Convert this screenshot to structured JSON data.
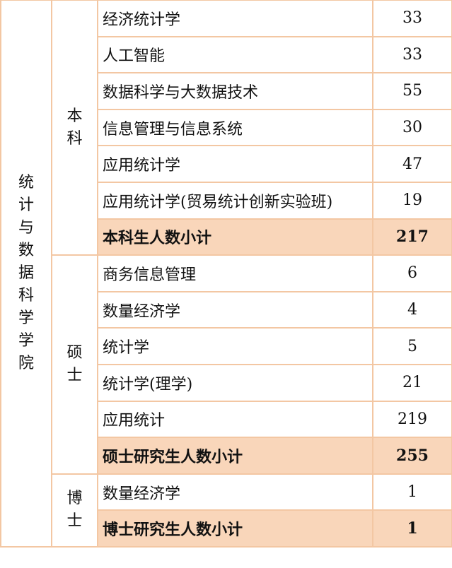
{
  "college": "统计与数据科学学院",
  "groups": [
    {
      "level": "本科",
      "rows": [
        {
          "major": "经济统计学",
          "count": "33"
        },
        {
          "major": "人工智能",
          "count": "33"
        },
        {
          "major": "数据科学与大数据技术",
          "count": "55"
        },
        {
          "major": "信息管理与信息系统",
          "count": "30"
        },
        {
          "major": "应用统计学",
          "count": "47"
        },
        {
          "major": "应用统计学(贸易统计创新实验班)",
          "count": "19"
        }
      ],
      "subtotal": {
        "label": "本科生人数小计",
        "count": "217"
      }
    },
    {
      "level": "硕士",
      "rows": [
        {
          "major": "商务信息管理",
          "count": "6"
        },
        {
          "major": "数量经济学",
          "count": "4"
        },
        {
          "major": "统计学",
          "count": "5"
        },
        {
          "major": "统计学(理学)",
          "count": "21"
        },
        {
          "major": "应用统计",
          "count": "219"
        }
      ],
      "subtotal": {
        "label": "硕士研究生人数小计",
        "count": "255"
      }
    },
    {
      "level": "博士",
      "rows": [
        {
          "major": "数量经济学",
          "count": "1"
        }
      ],
      "subtotal": {
        "label": "博士研究生人数小计",
        "count": "1"
      }
    }
  ],
  "colors": {
    "border": "#f3c7a3",
    "subtotal_fill": "#f9d6ba"
  }
}
